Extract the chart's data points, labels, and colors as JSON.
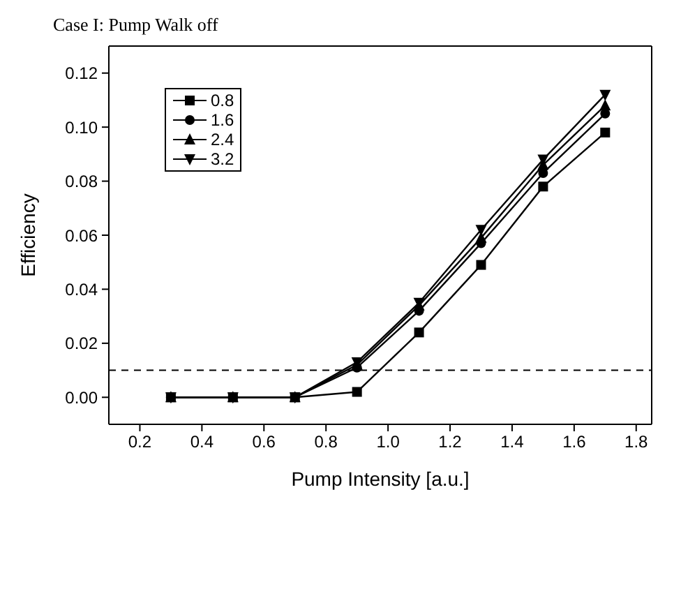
{
  "chart_data": {
    "type": "line",
    "title": "Case I: Pump Walk off",
    "xlabel": "Pump Intensity [a.u.]",
    "ylabel": "Efficiency",
    "x": [
      0.3,
      0.5,
      0.7,
      0.9,
      1.1,
      1.3,
      1.5,
      1.7
    ],
    "series": [
      {
        "name": "0.8",
        "color": "#000000",
        "marker": "square",
        "values": [
          0,
          0,
          0,
          0.002,
          0.024,
          0.049,
          0.078,
          0.098
        ]
      },
      {
        "name": "1.6",
        "color": "#000000",
        "marker": "circle",
        "values": [
          0,
          0,
          0,
          0.011,
          0.032,
          0.057,
          0.083,
          0.105
        ]
      },
      {
        "name": "2.4",
        "color": "#000000",
        "marker": "triangle",
        "values": [
          0,
          0,
          0,
          0.012,
          0.034,
          0.059,
          0.086,
          0.108
        ]
      },
      {
        "name": "3.2",
        "color": "#000000",
        "marker": "triangle-down",
        "values": [
          0,
          0,
          0,
          0.013,
          0.035,
          0.062,
          0.088,
          0.112
        ]
      }
    ],
    "xlim": [
      0.1,
      1.85
    ],
    "xticks": [
      0.2,
      0.4,
      0.6,
      0.8,
      {
        "value": 1,
        "label": "1.0"
      },
      1.2,
      1.4,
      1.6,
      1.8
    ],
    "ylim": [
      -0.01,
      0.13
    ],
    "yticks": [
      {
        "value": 0,
        "label": "0.00"
      },
      0.02,
      0.04,
      0.06,
      0.08,
      {
        "value": 0.1,
        "label": "0.10"
      },
      0.12
    ],
    "ref_lines": [
      {
        "axis": "y",
        "value": 0.01,
        "line_style": "dashed",
        "color": "#000000"
      }
    ],
    "legend": "top left",
    "grid": false,
    "line_style": "solid"
  }
}
